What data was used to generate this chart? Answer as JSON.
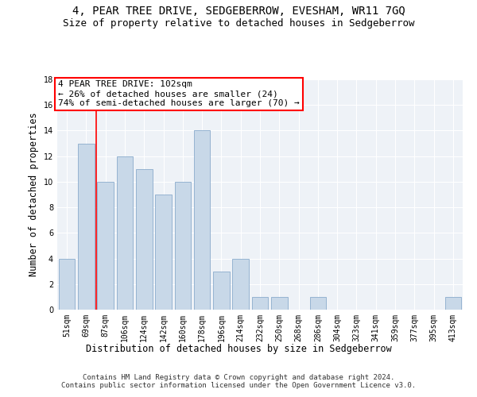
{
  "title": "4, PEAR TREE DRIVE, SEDGEBERROW, EVESHAM, WR11 7GQ",
  "subtitle": "Size of property relative to detached houses in Sedgeberrow",
  "xlabel": "Distribution of detached houses by size in Sedgeberrow",
  "ylabel": "Number of detached properties",
  "categories": [
    "51sqm",
    "69sqm",
    "87sqm",
    "106sqm",
    "124sqm",
    "142sqm",
    "160sqm",
    "178sqm",
    "196sqm",
    "214sqm",
    "232sqm",
    "250sqm",
    "268sqm",
    "286sqm",
    "304sqm",
    "323sqm",
    "341sqm",
    "359sqm",
    "377sqm",
    "395sqm",
    "413sqm"
  ],
  "values": [
    4,
    13,
    10,
    12,
    11,
    9,
    10,
    14,
    3,
    4,
    1,
    1,
    0,
    1,
    0,
    0,
    0,
    0,
    0,
    0,
    1
  ],
  "bar_color": "#c8d8e8",
  "bar_edge_color": "#8aabcc",
  "annotation_text": "4 PEAR TREE DRIVE: 102sqm\n← 26% of detached houses are smaller (24)\n74% of semi-detached houses are larger (70) →",
  "annotation_box_color": "white",
  "annotation_box_edge_color": "red",
  "vline_x": 1.5,
  "vline_color": "red",
  "ylim": [
    0,
    18
  ],
  "yticks": [
    0,
    2,
    4,
    6,
    8,
    10,
    12,
    14,
    16,
    18
  ],
  "footer": "Contains HM Land Registry data © Crown copyright and database right 2024.\nContains public sector information licensed under the Open Government Licence v3.0.",
  "title_fontsize": 10,
  "subtitle_fontsize": 9,
  "xlabel_fontsize": 8.5,
  "ylabel_fontsize": 8.5,
  "tick_fontsize": 7,
  "footer_fontsize": 6.5,
  "annotation_fontsize": 8,
  "bg_color": "#eef2f7"
}
